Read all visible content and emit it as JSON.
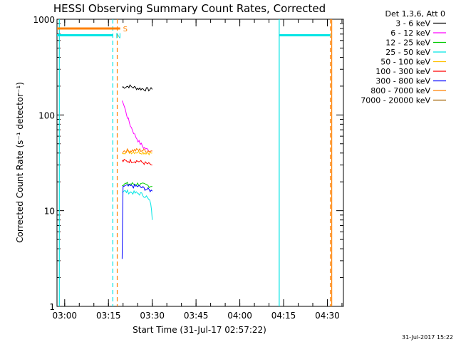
{
  "chart_data": {
    "type": "line",
    "title": "HESSI Observing Summary Count Rates, Corrected",
    "xlabel": "Start Time (31-Jul-17 02:57:22)",
    "ylabel": "Corrected Count Rate (s⁻¹ detector⁻¹)",
    "xlim": [
      "02:57:22",
      "04:35:30"
    ],
    "ylim": [
      1,
      1000
    ],
    "yscale": "log",
    "xticks": [
      "03:00",
      "03:15",
      "03:30",
      "03:45",
      "04:00",
      "04:15",
      "04:30"
    ],
    "yticks": [
      {
        "value": 1,
        "label": "1"
      },
      {
        "value": 10,
        "label": "10"
      },
      {
        "value": 100,
        "label": "100"
      },
      {
        "value": 1000,
        "label": "1000"
      }
    ],
    "legend": {
      "position": "top-right",
      "header": "Det 1,3,6, Att 0",
      "entries": [
        {
          "label": "3 - 6 keV",
          "color": "#000000"
        },
        {
          "label": "6 - 12 keV",
          "color": "#ff00ff"
        },
        {
          "label": "12 - 25 keV",
          "color": "#00cc00"
        },
        {
          "label": "25 - 50 keV",
          "color": "#00e5e5"
        },
        {
          "label": "50 - 100 keV",
          "color": "#ffc000"
        },
        {
          "label": "100 - 300 keV",
          "color": "#ff0000"
        },
        {
          "label": "300 - 800 keV",
          "color": "#0000ff"
        },
        {
          "label": "800 - 7000 keV",
          "color": "#ff8000"
        },
        {
          "label": "7000 - 20000 keV",
          "color": "#a06000"
        }
      ]
    },
    "series": [
      {
        "name": "3 - 6 keV",
        "color": "#000000",
        "x": [
          "03:19:40",
          "03:22:00",
          "03:25:00",
          "03:28:00",
          "03:30:00"
        ],
        "y": [
          195,
          200,
          190,
          185,
          185
        ]
      },
      {
        "name": "6 - 12 keV",
        "color": "#ff00ff",
        "x": [
          "03:19:40",
          "03:20:30",
          "03:21:30",
          "03:22:30",
          "03:24:00",
          "03:25:30",
          "03:27:00",
          "03:28:30",
          "03:30:00"
        ],
        "y": [
          145,
          120,
          95,
          78,
          62,
          52,
          46,
          43,
          42
        ]
      },
      {
        "name": "12 - 25 keV",
        "color": "#00cc00",
        "x": [
          "03:19:40",
          "03:25:00",
          "03:30:00"
        ],
        "y": [
          19,
          19,
          18
        ]
      },
      {
        "name": "25 - 50 keV",
        "color": "#00e5e5",
        "x": [
          "03:19:40",
          "03:23:00",
          "03:26:00",
          "03:28:00",
          "03:29:30",
          "03:30:00"
        ],
        "y": [
          16,
          15.5,
          15,
          14,
          12,
          8
        ]
      },
      {
        "name": "50 - 100 keV",
        "color": "#ffc000",
        "x": [
          "03:19:40",
          "03:25:00",
          "03:30:00"
        ],
        "y": [
          41,
          41,
          40
        ]
      },
      {
        "name": "100 - 300 keV",
        "color": "#ff0000",
        "x": [
          "03:19:40",
          "03:25:00",
          "03:28:00",
          "03:30:00"
        ],
        "y": [
          33,
          33,
          31,
          30
        ]
      },
      {
        "name": "300 - 800 keV",
        "color": "#0000ff",
        "x": [
          "03:19:40",
          "03:20:00",
          "03:25:00",
          "03:30:00"
        ],
        "y": [
          3,
          18,
          18,
          16
        ]
      },
      {
        "name": "800 - 7000 keV",
        "color": "#ff8000",
        "x": [
          "03:19:40",
          "03:25:00",
          "03:30:00"
        ],
        "y": [
          42,
          43,
          42
        ]
      },
      {
        "name": "7000 - 20000 keV",
        "color": "#a06000",
        "x": [],
        "y": []
      }
    ],
    "flags": [
      {
        "label": "S",
        "color": "#ff8000",
        "style": "solid",
        "x_start": "02:57:22",
        "x_end": "03:19:00",
        "level": 800
      },
      {
        "label": "N",
        "color": "#00e5e5",
        "style": "solid",
        "x_start": "02:57:22",
        "x_end": "03:16:30",
        "level": 680
      },
      {
        "label": "",
        "color": "#00e5e5",
        "style": "solid",
        "x_start": "04:13:30",
        "x_end": "04:31:00",
        "level": 680
      }
    ],
    "vertical_lines": [
      {
        "x": "02:58:10",
        "color": "#00e5e5",
        "style": "solid"
      },
      {
        "x": "03:16:30",
        "color": "#00e5e5",
        "style": "dashed"
      },
      {
        "x": "03:18:00",
        "color": "#ff8000",
        "style": "dashed"
      },
      {
        "x": "04:13:30",
        "color": "#00e5e5",
        "style": "solid"
      },
      {
        "x": "04:31:00",
        "color": "#ff8000",
        "style": "dashed"
      },
      {
        "x": "04:31:30",
        "color": "#ff8000",
        "style": "solid"
      }
    ],
    "footer_timestamp": "31-Jul-2017 15:22"
  }
}
